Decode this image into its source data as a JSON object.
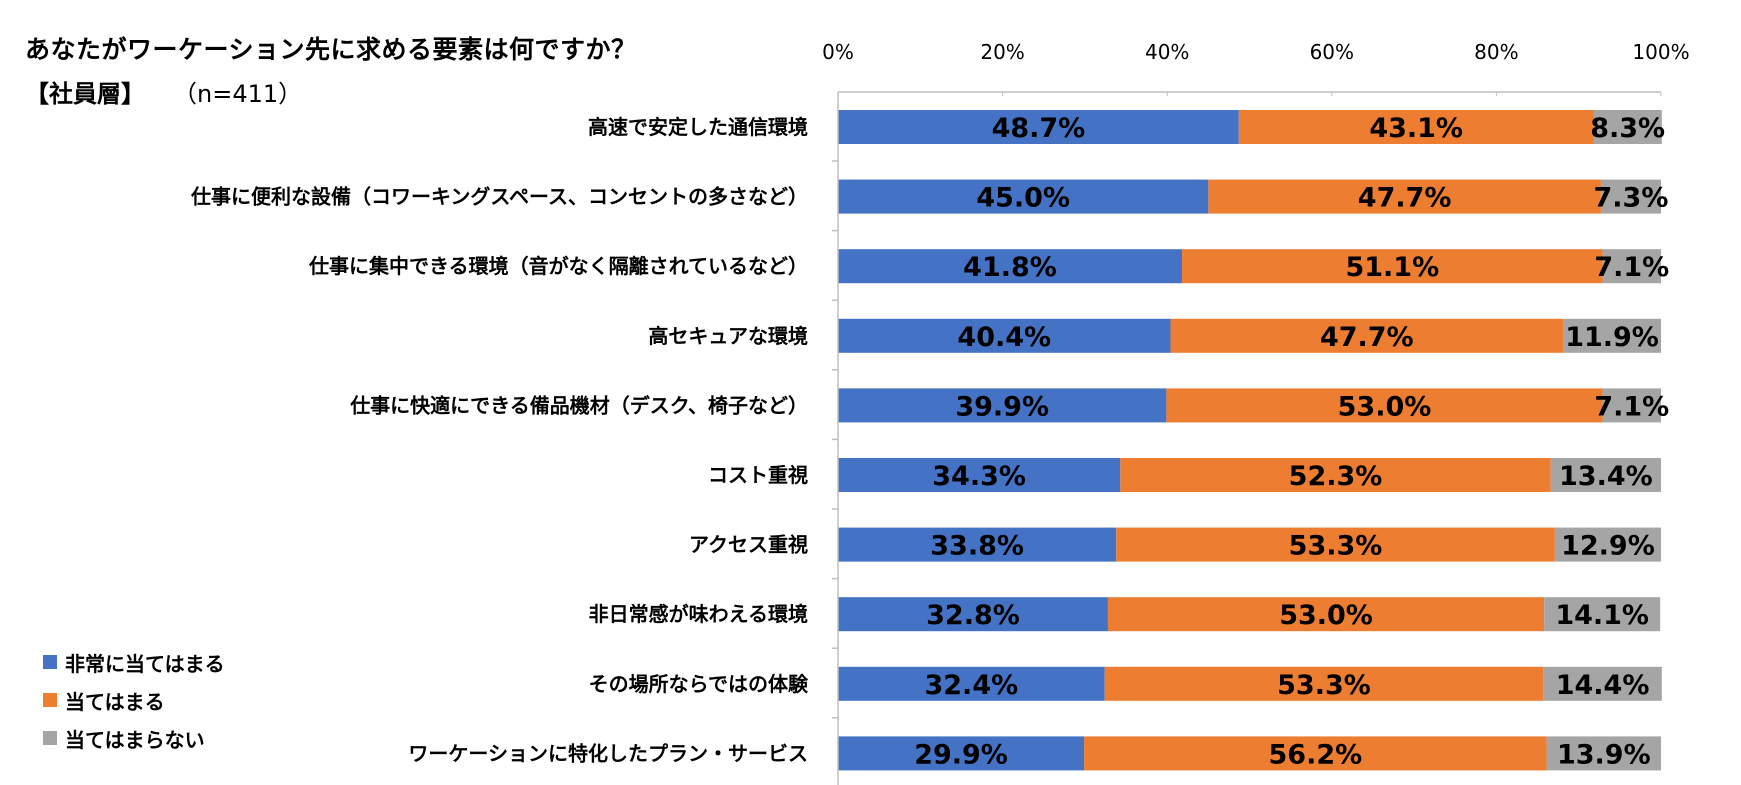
{
  "title": "あなたがワーケーション先に求める要素は何ですか？",
  "segment": "【社員層】",
  "sample_size": "（n=411）",
  "chart_data": {
    "type": "bar",
    "orientation": "horizontal",
    "stacked": true,
    "percent_scale": true,
    "xlim": [
      0,
      100
    ],
    "xticks": [
      "0%",
      "20%",
      "40%",
      "60%",
      "80%",
      "100%"
    ],
    "title": "あなたがワーケーション先に求める要素は何ですか？",
    "categories": [
      "高速で安定した通信環境",
      "仕事に便利な設備（コワーキングスペース、コンセントの多さなど）",
      "仕事に集中できる環境（音がなく隔離されているなど）",
      "高セキュアな環境",
      "仕事に快適にできる備品機材（デスク、椅子など）",
      "コスト重視",
      "アクセス重視",
      "非日常感が味わえる環境",
      "その場所ならではの体験",
      "ワーケーションに特化したプラン・サービス"
    ],
    "series": [
      {
        "name": "非常に当てはまる",
        "color": "#4472C4",
        "values": [
          48.7,
          45.0,
          41.8,
          40.4,
          39.9,
          34.3,
          33.8,
          32.8,
          32.4,
          29.9
        ]
      },
      {
        "name": "当てはまる",
        "color": "#ED7D31",
        "values": [
          43.1,
          47.7,
          51.1,
          47.7,
          53.0,
          52.3,
          53.3,
          53.0,
          53.3,
          56.2
        ]
      },
      {
        "name": "当てはまらない",
        "color": "#A5A5A5",
        "values": [
          8.3,
          7.3,
          7.1,
          11.9,
          7.1,
          13.4,
          12.9,
          14.1,
          14.4,
          13.9
        ]
      }
    ],
    "legend_position": "bottom-left",
    "grid": false
  }
}
